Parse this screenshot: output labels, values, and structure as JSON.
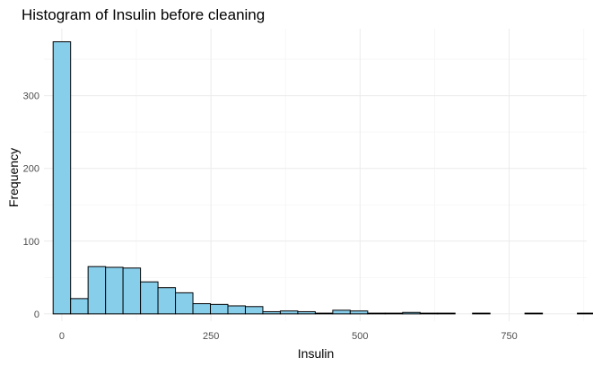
{
  "chart_data": {
    "type": "bar",
    "title": "Histogram of Insulin before cleaning",
    "xlabel": "Insulin",
    "ylabel": "Frequency",
    "xlim": [
      -30,
      880
    ],
    "ylim": [
      -10,
      392
    ],
    "x_ticks": [
      0,
      250,
      500,
      750
    ],
    "y_ticks": [
      0,
      100,
      200,
      300
    ],
    "bin_width": 29.3,
    "x_start": -14.65,
    "values": [
      374,
      21,
      65,
      64,
      63,
      44,
      36,
      29,
      14,
      13,
      11,
      10,
      3,
      4,
      3,
      1,
      5,
      4,
      1,
      1,
      2,
      1,
      1,
      0,
      1,
      0,
      0,
      1,
      0,
      0,
      1
    ],
    "bar_color": "#87ceeb",
    "grid": true,
    "legend": "none"
  }
}
